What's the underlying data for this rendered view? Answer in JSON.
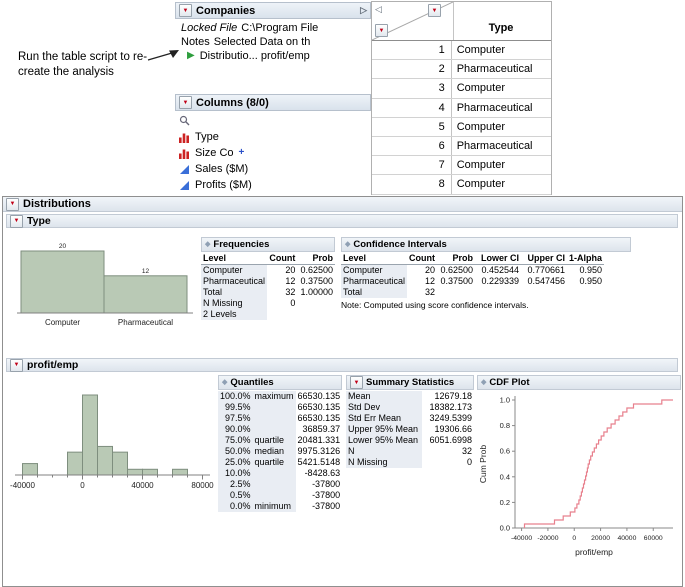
{
  "annotation": {
    "line1": "Run the table script to re-",
    "line2": "create the analysis"
  },
  "companies_panel": {
    "title": "Companies",
    "locked_file_label": "Locked File",
    "locked_file_value": "C:\\Program File",
    "notes_label": "Notes",
    "notes_value": "Selected Data on th",
    "script_label": "Distributio... profit/emp"
  },
  "columns_panel": {
    "title": "Columns (8/0)",
    "items": [
      {
        "label": "Type",
        "modeling": "nominal"
      },
      {
        "label": "Size Co",
        "modeling": "nominal",
        "extra": "plus"
      },
      {
        "label": "Sales ($M)",
        "modeling": "continuous"
      },
      {
        "label": "Profits ($M)",
        "modeling": "continuous"
      }
    ]
  },
  "data_grid": {
    "header": "Type",
    "rows": [
      [
        1,
        "Computer"
      ],
      [
        2,
        "Pharmaceutical"
      ],
      [
        3,
        "Computer"
      ],
      [
        4,
        "Pharmaceutical"
      ],
      [
        5,
        "Computer"
      ],
      [
        6,
        "Pharmaceutical"
      ],
      [
        7,
        "Computer"
      ],
      [
        8,
        "Computer"
      ]
    ]
  },
  "report": {
    "title": "Distributions",
    "type_section": {
      "title": "Type",
      "frequencies": {
        "title": "Frequencies",
        "headers": [
          "Level",
          "Count",
          "Prob"
        ],
        "rows": [
          [
            "Computer",
            "20",
            "0.62500"
          ],
          [
            "Pharmaceutical",
            "12",
            "0.37500"
          ],
          [
            "Total",
            "32",
            "1.00000"
          ],
          [
            "N Missing",
            "0",
            ""
          ],
          [
            "2 Levels",
            "",
            ""
          ]
        ]
      },
      "confidence": {
        "title": "Confidence Intervals",
        "headers": [
          "Level",
          "Count",
          "Prob",
          "Lower CI",
          "Upper CI",
          "1-Alpha"
        ],
        "rows": [
          [
            "Computer",
            "20",
            "0.62500",
            "0.452544",
            "0.770661",
            "0.950"
          ],
          [
            "Pharmaceutical",
            "12",
            "0.37500",
            "0.229339",
            "0.547456",
            "0.950"
          ],
          [
            "Total",
            "32",
            "",
            "",
            "",
            ""
          ]
        ],
        "note": "Note: Computed using score confidence intervals."
      }
    },
    "profit_section": {
      "title": "profit/emp",
      "quantiles": {
        "title": "Quantiles",
        "rows": [
          [
            "100.0%",
            "maximum",
            "66530.135"
          ],
          [
            "99.5%",
            "",
            "66530.135"
          ],
          [
            "97.5%",
            "",
            "66530.135"
          ],
          [
            "90.0%",
            "",
            "36859.37"
          ],
          [
            "75.0%",
            "quartile",
            "20481.331"
          ],
          [
            "50.0%",
            "median",
            "9975.3126"
          ],
          [
            "25.0%",
            "quartile",
            "5421.5148"
          ],
          [
            "10.0%",
            "",
            "-8428.63"
          ],
          [
            "2.5%",
            "",
            "-37800"
          ],
          [
            "0.5%",
            "",
            "-37800"
          ],
          [
            "0.0%",
            "minimum",
            "-37800"
          ]
        ]
      },
      "summary": {
        "title": "Summary Statistics",
        "rows": [
          [
            "Mean",
            "12679.18"
          ],
          [
            "Std Dev",
            "18382.173"
          ],
          [
            "Std Err Mean",
            "3249.5399"
          ],
          [
            "Upper 95% Mean",
            "19306.66"
          ],
          [
            "Lower 95% Mean",
            "6051.6998"
          ],
          [
            "N",
            "32"
          ],
          [
            "N Missing",
            "0"
          ]
        ]
      },
      "cdf": {
        "title": "CDF Plot"
      }
    }
  },
  "colors": {
    "accent_red": "#c00018",
    "script_green": "#2e9e3e",
    "histogram_bar": "#b9c9b5",
    "cdf_line": "#e8808d"
  },
  "chart_data": [
    {
      "id": "type-histogram",
      "type": "bar",
      "categories": [
        "Computer",
        "Pharmaceutical"
      ],
      "values": [
        20,
        12
      ],
      "bar_color": "#b9c9b5",
      "ylim": [
        0,
        22
      ]
    },
    {
      "id": "profit-histogram",
      "type": "histogram",
      "bin_start": -40000,
      "bin_width": 10000,
      "counts": [
        2,
        0,
        0,
        4,
        14,
        5,
        4,
        1,
        1,
        0,
        1
      ],
      "xticks": [
        -40000,
        0,
        40000,
        80000
      ],
      "xlim": [
        -45000,
        85000
      ],
      "bar_color": "#b9c9b5"
    },
    {
      "id": "cdf-plot",
      "type": "step",
      "title": "CDF Plot",
      "xlabel": "profit/emp",
      "ylabel": "Cum Prob",
      "xlim": [
        -45000,
        75000
      ],
      "ylim": [
        0,
        1
      ],
      "xticks": [
        -40000,
        -20000,
        0,
        20000,
        40000,
        60000
      ],
      "yticks": [
        0,
        0.2,
        0.4,
        0.6,
        0.8,
        1
      ],
      "line_color": "#e8808d",
      "x": [
        -37800,
        -15000,
        -8428,
        -3000,
        500,
        2000,
        3500,
        4500,
        5421,
        6200,
        7000,
        7800,
        8600,
        9300,
        9975,
        10600,
        11500,
        12500,
        13800,
        15200,
        16800,
        18500,
        20481,
        22500,
        25000,
        28000,
        31000,
        34000,
        36859,
        40000,
        45000,
        66530
      ]
    }
  ]
}
